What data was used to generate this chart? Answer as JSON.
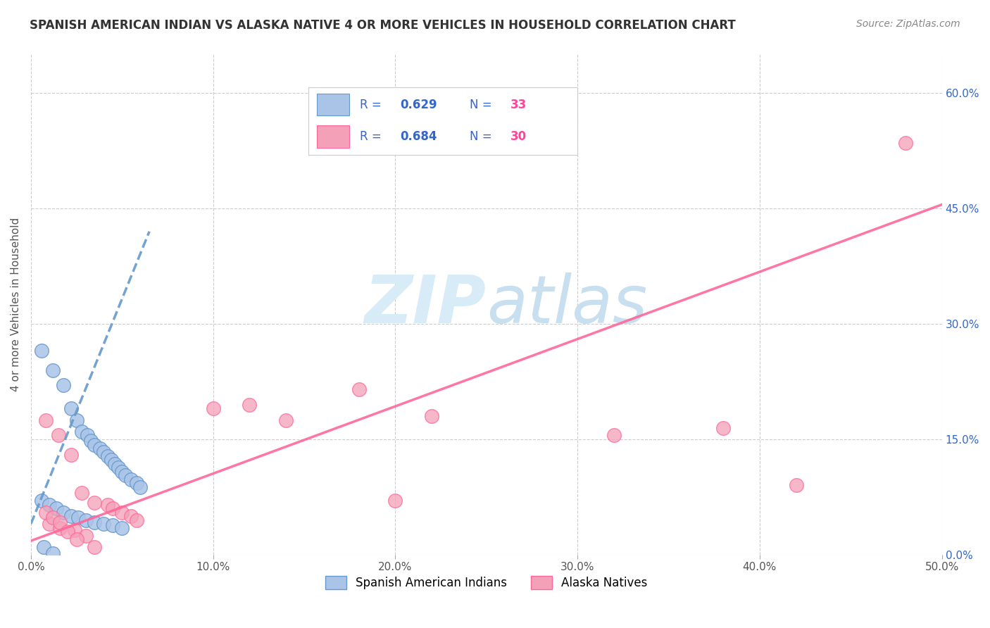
{
  "title": "SPANISH AMERICAN INDIAN VS ALASKA NATIVE 4 OR MORE VEHICLES IN HOUSEHOLD CORRELATION CHART",
  "source": "Source: ZipAtlas.com",
  "ylabel": "4 or more Vehicles in Household",
  "xlim": [
    0.0,
    0.5
  ],
  "ylim": [
    0.0,
    0.65
  ],
  "xticks": [
    0.0,
    0.1,
    0.2,
    0.3,
    0.4,
    0.5
  ],
  "xticklabels": [
    "0.0%",
    "10.0%",
    "20.0%",
    "30.0%",
    "40.0%",
    "50.0%"
  ],
  "ytick_positions": [
    0.0,
    0.15,
    0.3,
    0.45,
    0.6
  ],
  "ytick_labels_right": [
    "0.0%",
    "15.0%",
    "30.0%",
    "45.0%",
    "60.0%"
  ],
  "grid_color": "#cccccc",
  "background_color": "#ffffff",
  "blue_color": "#6699cc",
  "pink_color": "#ff6699",
  "blue_fill": "#aac4e8",
  "pink_fill": "#f4a0b8",
  "legend_blue_r": "0.629",
  "legend_blue_n": "33",
  "legend_pink_r": "0.684",
  "legend_pink_n": "30",
  "blue_scatter_x": [
    0.006,
    0.012,
    0.018,
    0.022,
    0.025,
    0.028,
    0.031,
    0.033,
    0.035,
    0.038,
    0.04,
    0.042,
    0.044,
    0.046,
    0.048,
    0.05,
    0.052,
    0.055,
    0.058,
    0.06,
    0.006,
    0.01,
    0.014,
    0.018,
    0.022,
    0.026,
    0.03,
    0.035,
    0.04,
    0.045,
    0.05,
    0.007,
    0.012
  ],
  "blue_scatter_y": [
    0.265,
    0.24,
    0.22,
    0.19,
    0.175,
    0.16,
    0.155,
    0.148,
    0.143,
    0.138,
    0.133,
    0.128,
    0.123,
    0.118,
    0.113,
    0.108,
    0.103,
    0.098,
    0.093,
    0.088,
    0.07,
    0.065,
    0.06,
    0.055,
    0.05,
    0.048,
    0.045,
    0.042,
    0.04,
    0.038,
    0.035,
    0.01,
    0.002
  ],
  "pink_scatter_x": [
    0.008,
    0.015,
    0.022,
    0.028,
    0.035,
    0.042,
    0.045,
    0.05,
    0.055,
    0.058,
    0.12,
    0.18,
    0.22,
    0.1,
    0.14,
    0.32,
    0.38,
    0.42,
    0.01,
    0.016,
    0.024,
    0.03,
    0.008,
    0.012,
    0.016,
    0.02,
    0.025,
    0.035,
    0.2,
    0.48
  ],
  "pink_scatter_y": [
    0.175,
    0.155,
    0.13,
    0.08,
    0.068,
    0.065,
    0.06,
    0.055,
    0.05,
    0.045,
    0.195,
    0.215,
    0.18,
    0.19,
    0.175,
    0.155,
    0.165,
    0.09,
    0.04,
    0.035,
    0.032,
    0.025,
    0.055,
    0.048,
    0.042,
    0.03,
    0.02,
    0.01,
    0.07,
    0.535
  ],
  "blue_line_x": [
    0.0,
    0.065
  ],
  "blue_line_y": [
    0.04,
    0.42
  ],
  "pink_line_x": [
    0.0,
    0.5
  ],
  "pink_line_y": [
    0.018,
    0.455
  ],
  "watermark_zip": "ZIP",
  "watermark_atlas": "atlas",
  "watermark_color_zip": "#d8ecf8",
  "watermark_color_atlas": "#c8dff0",
  "watermark_fontsize": 68,
  "bottom_legend_label_blue": "Spanish American Indians",
  "bottom_legend_label_pink": "Alaska Natives"
}
